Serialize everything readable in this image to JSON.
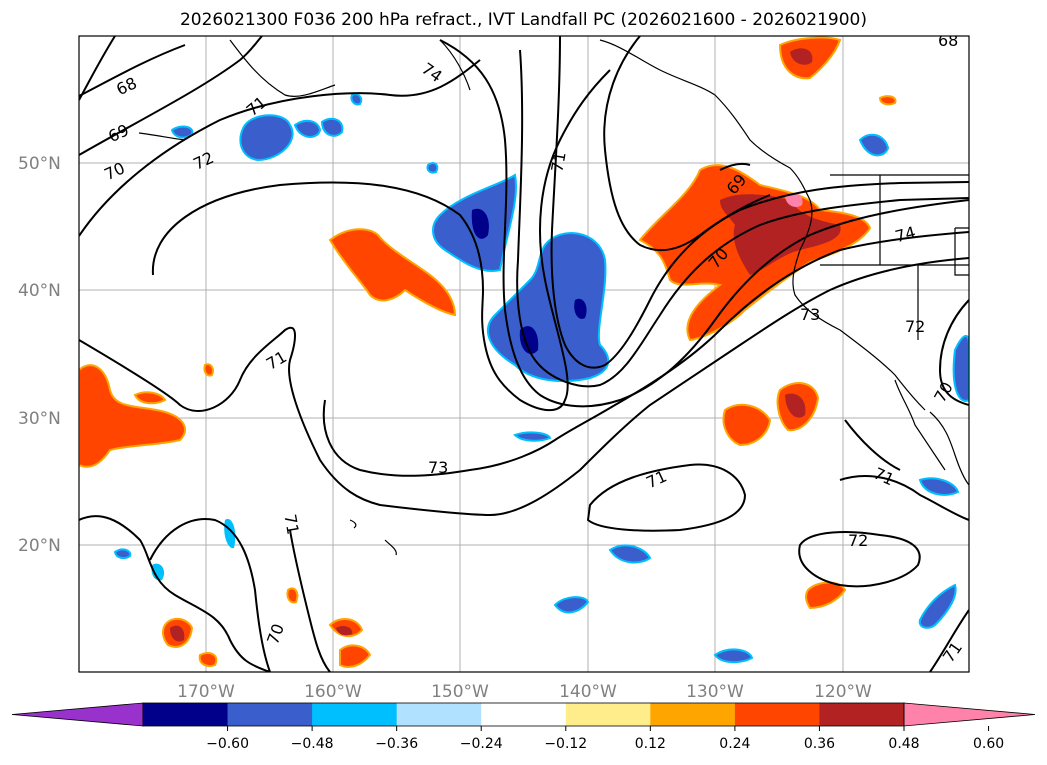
{
  "title": "2026021300 F036 200 hPa refract., IVT Landfall PC (2026021600 - 2026021900)",
  "map": {
    "lat_labels": [
      "50°N",
      "40°N",
      "30°N",
      "20°N"
    ],
    "lon_labels": [
      "170°W",
      "160°W",
      "150°W",
      "140°W",
      "130°W",
      "120°W"
    ],
    "contour_labels": [
      "68",
      "69",
      "70",
      "71",
      "72",
      "74",
      "73",
      "71",
      "71",
      "70",
      "71",
      "69",
      "70",
      "73",
      "72",
      "71",
      "72",
      "71",
      "74",
      "68",
      "71",
      "70"
    ]
  },
  "colorbar": {
    "colors": [
      "#9932cc",
      "#00008b",
      "#3a5fcd",
      "#00bfff",
      "#b0e2ff",
      "#ffffff",
      "#ffec8b",
      "#ffa500",
      "#ff4500",
      "#b22222",
      "#ff82ab"
    ],
    "ticks": [
      "−0.60",
      "−0.48",
      "−0.36",
      "−0.24",
      "−0.12",
      "0.12",
      "0.24",
      "0.36",
      "0.48",
      "0.60"
    ]
  }
}
